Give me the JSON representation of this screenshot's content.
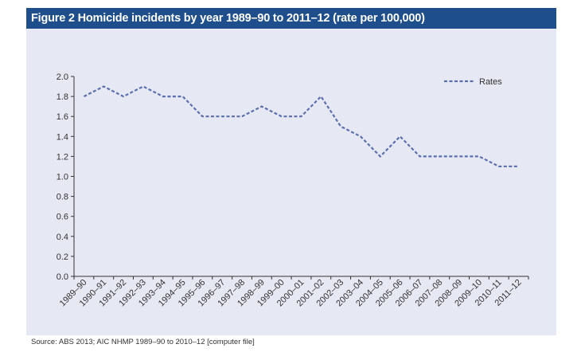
{
  "figure": {
    "title": "Figure 2 Homicide incidents by year 1989–90 to 2011–12 (rate per 100,000)",
    "source": "Source: ABS 2013; AIC NHMP 1989–90 to 2010–12 [computer file]"
  },
  "colors": {
    "header_bg": "#1f4e8c",
    "panel_bg": "#e6e9f4",
    "series": "#5b6fae"
  },
  "chart_data": {
    "type": "line",
    "title": "Figure 2 Homicide incidents by year 1989–90 to 2011–12 (rate per 100,000)",
    "xlabel": "",
    "ylabel": "",
    "ylim": [
      0,
      2.0
    ],
    "yticks": [
      "0.0",
      "0.2",
      "0.4",
      "0.6",
      "0.8",
      "1.0",
      "1.2",
      "1.4",
      "1.6",
      "1.8",
      "2.0"
    ],
    "grid": false,
    "legend_position": "top-right",
    "categories": [
      "1989–90",
      "1990–91",
      "1991–92",
      "1992–93",
      "1993–94",
      "1994–95",
      "1995–96",
      "1996–97",
      "1997–98",
      "1998–99",
      "1999–00",
      "2000–01",
      "2001–02",
      "2002–03",
      "2003–04",
      "2004–05",
      "2005–06",
      "2006–07",
      "2007–08",
      "2008–09",
      "2009–10",
      "2010–11",
      "2011–12"
    ],
    "series": [
      {
        "name": "Rates",
        "line_style": "dashed",
        "values": [
          1.8,
          1.9,
          1.8,
          1.9,
          1.8,
          1.8,
          1.6,
          1.6,
          1.6,
          1.7,
          1.6,
          1.6,
          1.8,
          1.5,
          1.4,
          1.2,
          1.4,
          1.2,
          1.2,
          1.2,
          1.2,
          1.1,
          1.1
        ]
      }
    ]
  }
}
